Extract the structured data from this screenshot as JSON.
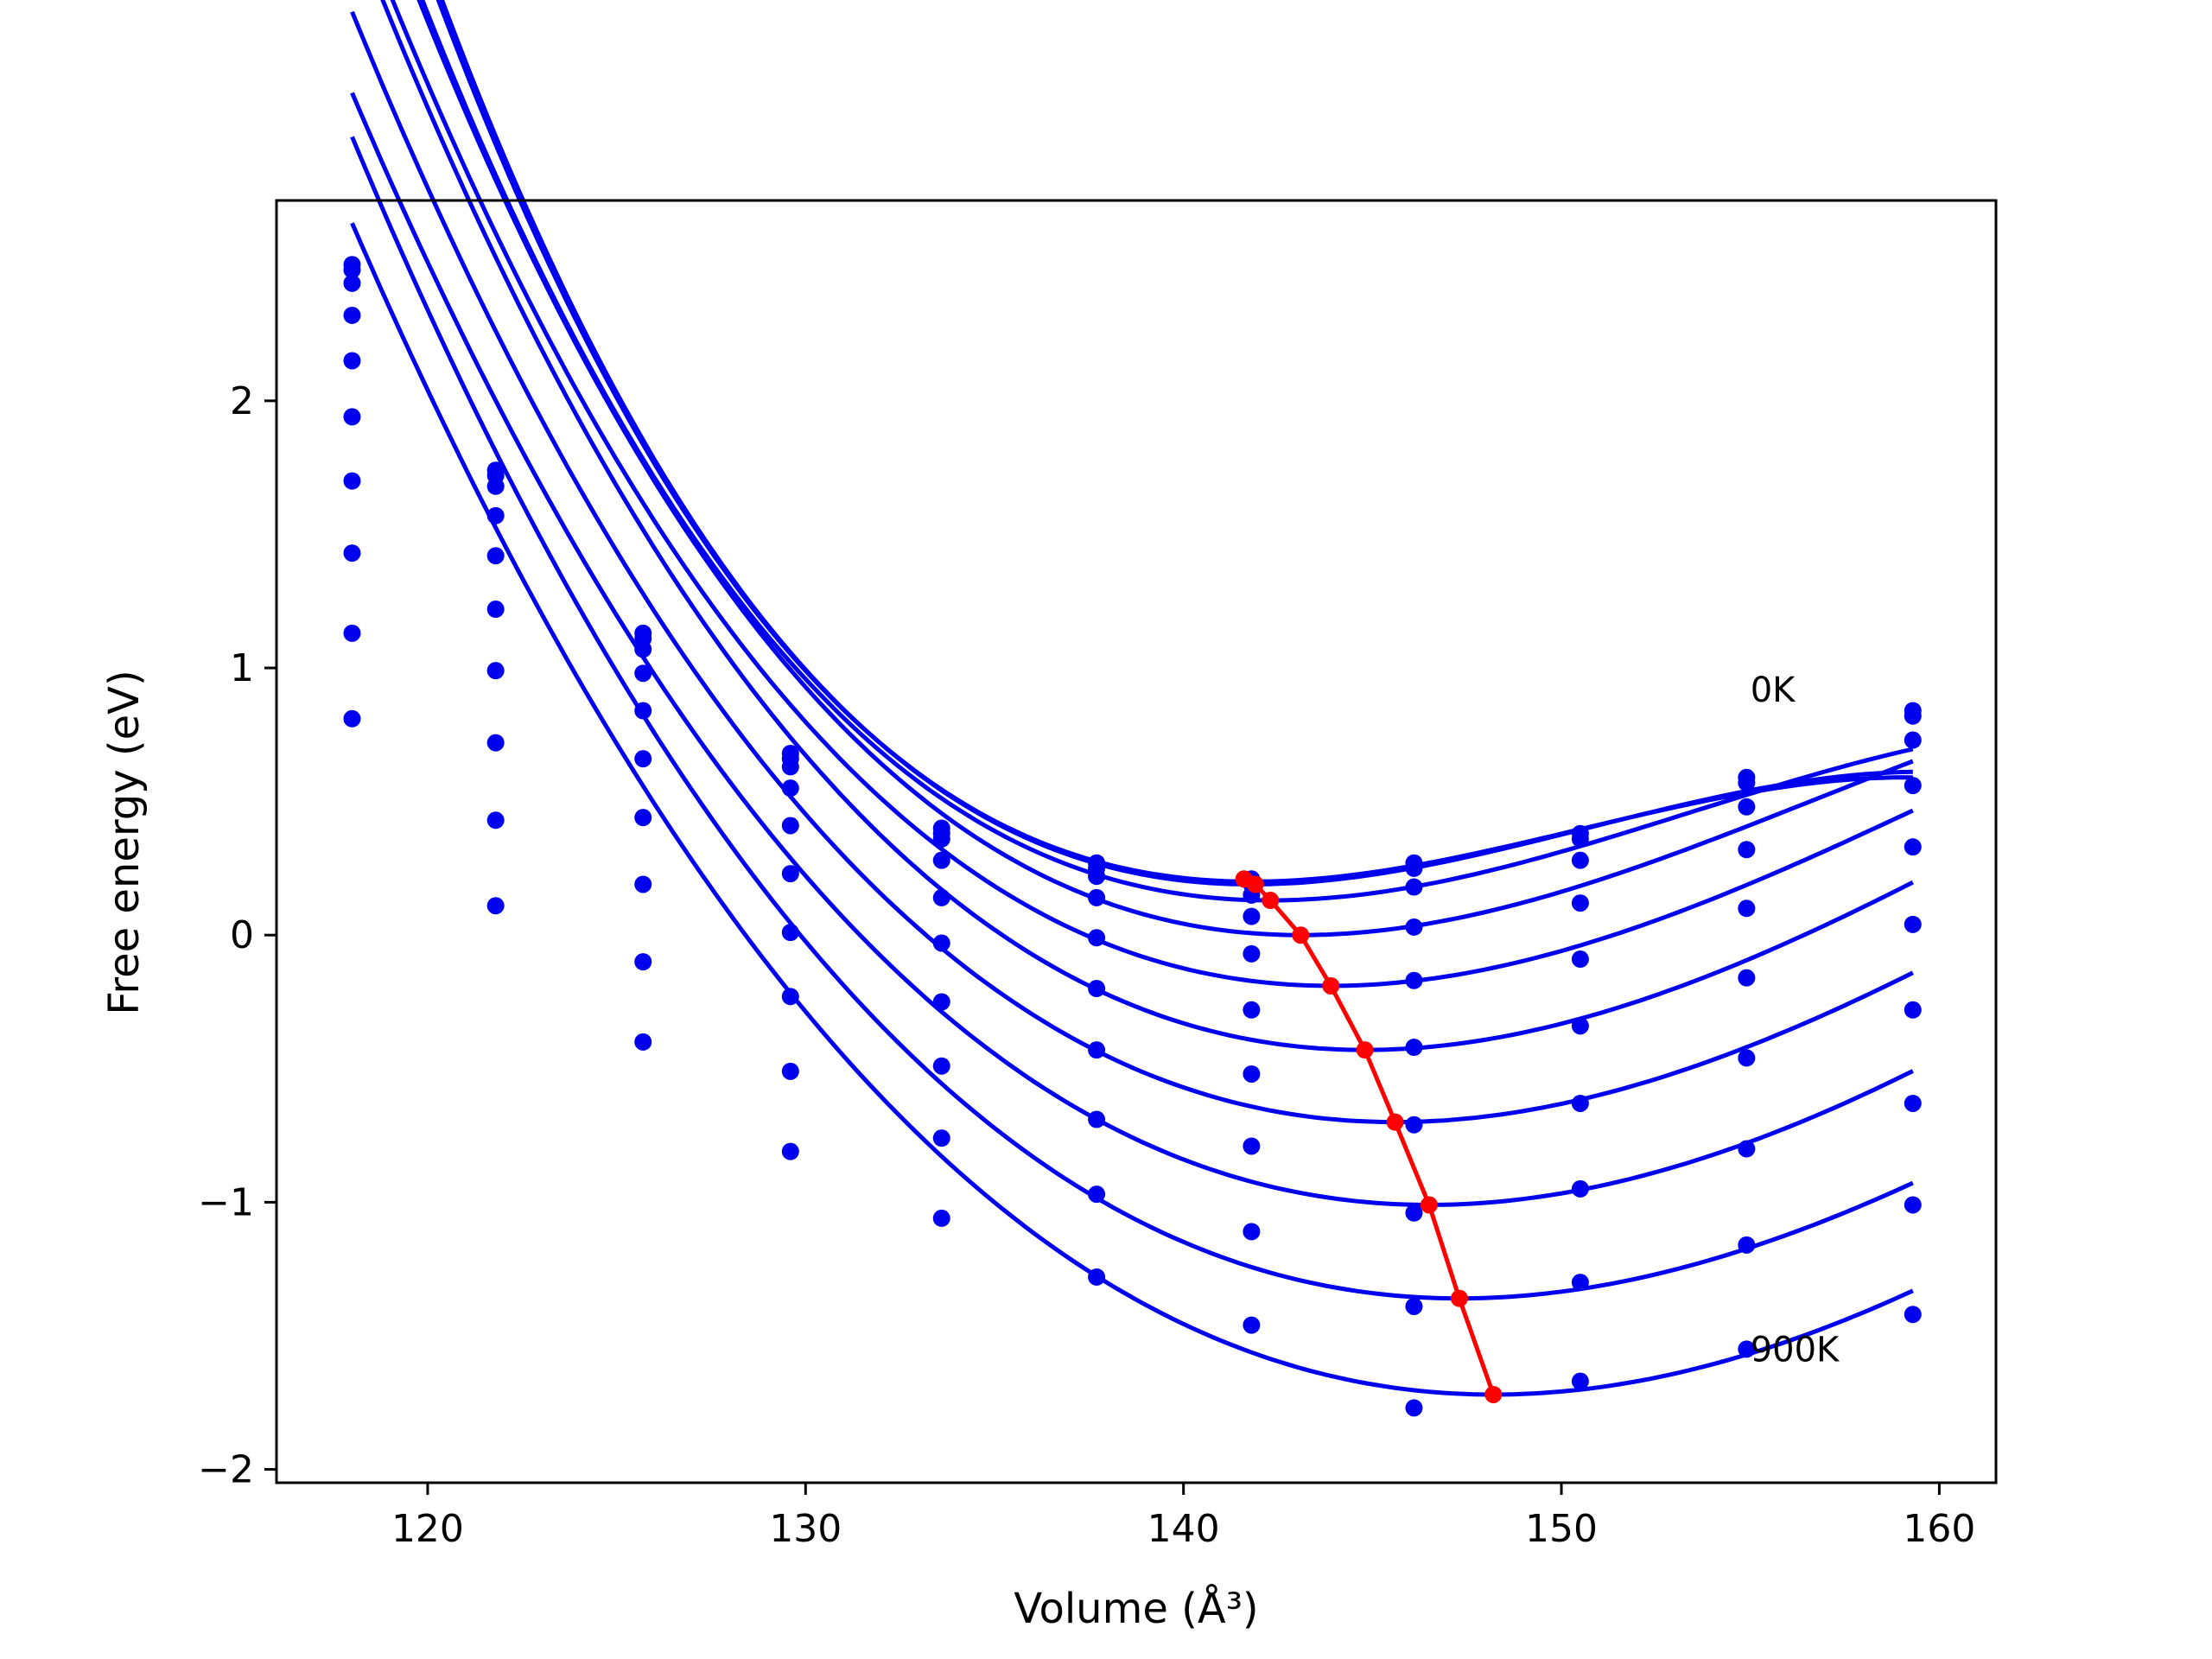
{
  "chart_data": {
    "type": "line",
    "xlabel": "Volume (Å³)",
    "ylabel": "Free energy (eV)",
    "xlim": [
      116,
      161.5
    ],
    "ylim": [
      -2.05,
      2.75
    ],
    "grid": false,
    "x_ticks": [
      {
        "value": 120,
        "label": "120"
      },
      {
        "value": 130,
        "label": "130"
      },
      {
        "value": 140,
        "label": "140"
      },
      {
        "value": 150,
        "label": "150"
      },
      {
        "value": 160,
        "label": "160"
      }
    ],
    "y_ticks": [
      {
        "value": 2,
        "label": "2"
      },
      {
        "value": 1,
        "label": "1"
      },
      {
        "value": 0,
        "label": "0"
      },
      {
        "value": -1,
        "label": "−1"
      },
      {
        "value": -2,
        "label": "−2"
      }
    ],
    "annotations": [
      {
        "text": "0K",
        "x": 155.0,
        "y": 0.92
      },
      {
        "text": "900K",
        "x": 155.0,
        "y": -1.55
      }
    ],
    "x": [
      118.0,
      121.8,
      125.7,
      129.6,
      133.6,
      137.7,
      141.8,
      146.1,
      150.5,
      154.9,
      159.3
    ],
    "dots": [
      [
        2.51,
        1.74,
        1.13,
        0.68,
        0.4,
        0.27,
        0.21,
        0.27,
        0.38,
        0.59,
        0.84
      ],
      [
        2.49,
        1.72,
        1.11,
        0.66,
        0.38,
        0.25,
        0.19,
        0.25,
        0.36,
        0.57,
        0.82
      ],
      [
        2.44,
        1.68,
        1.07,
        0.63,
        0.36,
        0.22,
        0.15,
        0.18,
        0.28,
        0.48,
        0.73
      ],
      [
        2.32,
        1.57,
        0.98,
        0.55,
        0.28,
        0.14,
        0.07,
        0.03,
        0.12,
        0.32,
        0.56
      ],
      [
        2.15,
        1.42,
        0.84,
        0.41,
        0.14,
        -0.01,
        -0.07,
        -0.17,
        -0.09,
        0.1,
        0.33
      ],
      [
        1.94,
        1.22,
        0.66,
        0.23,
        -0.03,
        -0.2,
        -0.28,
        -0.42,
        -0.34,
        -0.16,
        0.04
      ],
      [
        1.7,
        0.99,
        0.44,
        0.01,
        -0.25,
        -0.43,
        -0.52,
        -0.71,
        -0.63,
        -0.46,
        -0.28
      ],
      [
        1.43,
        0.72,
        0.19,
        -0.23,
        -0.49,
        -0.69,
        -0.79,
        -1.04,
        -0.95,
        -0.8,
        -0.63
      ],
      [
        1.13,
        0.43,
        -0.1,
        -0.51,
        -0.76,
        -0.97,
        -1.11,
        -1.39,
        -1.3,
        -1.16,
        -1.01
      ],
      [
        0.81,
        0.11,
        -0.4,
        -0.81,
        -1.06,
        -1.28,
        -1.46,
        -1.77,
        -1.67,
        -1.55,
        -1.42
      ]
    ],
    "fits": [
      {
        "v0": 141.8,
        "e0": 0.19,
        "a": 0.004,
        "b": 0.00015
      },
      {
        "v0": 141.8,
        "e0": 0.2,
        "a": 0.0039,
        "b": 0.00015
      },
      {
        "v0": 142.3,
        "e0": 0.13,
        "a": 0.004,
        "b": 0.00012
      },
      {
        "v0": 143.1,
        "e0": 0.0,
        "a": 0.0041,
        "b": 0.0001
      },
      {
        "v0": 143.9,
        "e0": -0.19,
        "a": 0.004,
        "b": 8e-05
      },
      {
        "v0": 144.8,
        "e0": -0.43,
        "a": 0.004,
        "b": 7e-05
      },
      {
        "v0": 145.6,
        "e0": -0.7,
        "a": 0.0038,
        "b": 6e-05
      },
      {
        "v0": 146.5,
        "e0": -1.01,
        "a": 0.0037,
        "b": 5e-05
      },
      {
        "v0": 147.3,
        "e0": -1.36,
        "a": 0.0036,
        "b": 5e-05
      },
      {
        "v0": 148.2,
        "e0": -1.72,
        "a": 0.0036,
        "b": 4e-05
      }
    ],
    "minima": {
      "x": [
        141.6,
        141.9,
        142.3,
        143.1,
        143.9,
        144.8,
        145.6,
        146.5,
        147.3,
        148.2
      ],
      "y": [
        0.21,
        0.19,
        0.13,
        0.0,
        -0.19,
        -0.43,
        -0.7,
        -1.01,
        -1.36,
        -1.72
      ]
    },
    "colors": {
      "fits": "#0000ee",
      "dots": "#0000ee",
      "minima": "#ff0000",
      "axes": "#000000"
    }
  }
}
